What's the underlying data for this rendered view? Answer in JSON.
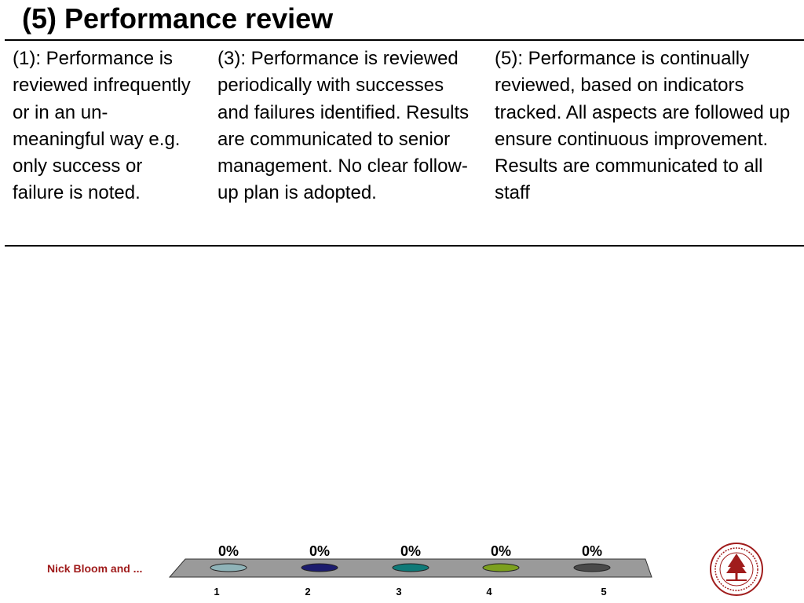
{
  "slide": {
    "title": "(5) Performance review",
    "columns": [
      "(1): Performance is reviewed infrequently or in an un-meaningful way e.g. only success or failure is noted.",
      "(3): Performance is reviewed periodically with successes and failures identified.  Results are communicated to senior management. No clear follow-up plan is adopted.",
      "(5): Performance is continually reviewed, based on indicators tracked.  All aspects are followed up ensure continuous improvement. Results are communicated to all staff"
    ],
    "footer": "Nick Bloom and ..."
  },
  "colors": {
    "accent": "#a01c1c",
    "tray": "#9a9a9a",
    "option_colors": [
      "#8fb3b8",
      "#1c1c6e",
      "#0f7a78",
      "#7ca01e",
      "#4a4a4a"
    ]
  },
  "chart_data": {
    "type": "bar",
    "categories": [
      "1",
      "2",
      "3",
      "4",
      "5"
    ],
    "values": [
      0,
      0,
      0,
      0,
      0
    ],
    "value_labels": [
      "0%",
      "0%",
      "0%",
      "0%",
      "0%"
    ],
    "ylim": [
      0,
      100
    ]
  },
  "icons": {
    "seal": "university-seal-icon"
  }
}
